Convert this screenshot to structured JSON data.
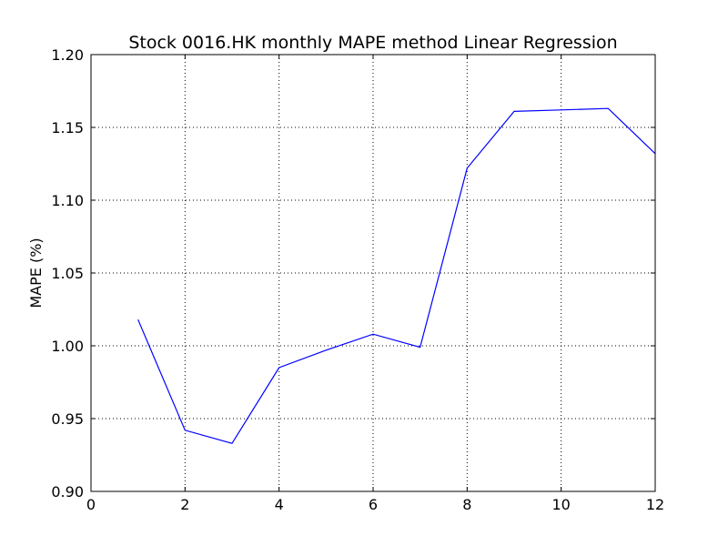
{
  "chart_data": {
    "type": "line",
    "title": "Stock 0016.HK monthly MAPE method Linear Regression",
    "xlabel": "",
    "ylabel": "MAPE (%)",
    "xlim": [
      0,
      12
    ],
    "ylim": [
      0.9,
      1.2
    ],
    "xticks": [
      0,
      2,
      4,
      6,
      8,
      10,
      12
    ],
    "xtick_labels": [
      "0",
      "2",
      "4",
      "6",
      "8",
      "10",
      "12"
    ],
    "yticks": [
      0.9,
      0.95,
      1.0,
      1.05,
      1.1,
      1.15,
      1.2
    ],
    "ytick_labels": [
      "0.90",
      "0.95",
      "1.00",
      "1.05",
      "1.10",
      "1.15",
      "1.20"
    ],
    "grid": true,
    "legend": null,
    "series": [
      {
        "color": "#0000ff",
        "x": [
          1,
          2,
          3,
          4,
          5,
          6,
          7,
          8,
          9,
          10,
          11,
          12
        ],
        "y": [
          1.018,
          0.942,
          0.933,
          0.985,
          0.997,
          1.008,
          0.999,
          1.122,
          1.161,
          1.162,
          1.163,
          1.132
        ]
      }
    ]
  }
}
